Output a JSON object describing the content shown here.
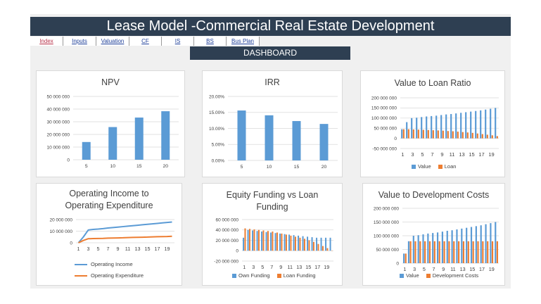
{
  "header": {
    "title": "Lease Model -Commercial Real Estate Development"
  },
  "nav": {
    "items": [
      "Index",
      "Inputs",
      "Valuation",
      "CF",
      "IS",
      "BS",
      "Bus Plan"
    ]
  },
  "dashboard_label": "DASHBOARD",
  "colors": {
    "blue": "#5b9bd5",
    "orange": "#ed7d31",
    "dark": "#2e3f52"
  },
  "chart_data": [
    {
      "id": "npv",
      "type": "bar",
      "title": "NPV",
      "categories": [
        "5",
        "10",
        "15",
        "20"
      ],
      "series": [
        {
          "values": [
            14000000,
            25800000,
            33300000,
            38300000
          ]
        }
      ],
      "ylim": [
        0,
        50000000
      ],
      "yticks": [
        "0",
        "10 000 000",
        "20 000 000",
        "30 000 000",
        "40 000 000",
        "50 000 000"
      ]
    },
    {
      "id": "irr",
      "type": "bar",
      "title": "IRR",
      "categories": [
        "5",
        "10",
        "15",
        "20"
      ],
      "series": [
        {
          "values": [
            15.6,
            14.1,
            12.3,
            11.4
          ]
        }
      ],
      "ylim": [
        0,
        20
      ],
      "yticks": [
        "0.00%",
        "5.00%",
        "10.00%",
        "15.00%",
        "20.00%"
      ]
    },
    {
      "id": "vtl",
      "type": "bar",
      "title": "Value to Loan Ratio",
      "categories": [
        "1",
        "2",
        "3",
        "4",
        "5",
        "6",
        "7",
        "8",
        "9",
        "10",
        "11",
        "12",
        "13",
        "14",
        "15",
        "16",
        "17",
        "18",
        "19",
        "20"
      ],
      "xticks": [
        "1",
        "3",
        "5",
        "7",
        "9",
        "11",
        "13",
        "15",
        "17",
        "19"
      ],
      "series": [
        {
          "name": "Value",
          "values": [
            45000000,
            80000000,
            100000000,
            102000000,
            105000000,
            108000000,
            110000000,
            112000000,
            115000000,
            118000000,
            120000000,
            123000000,
            126000000,
            129000000,
            132000000,
            135000000,
            138000000,
            142000000,
            146000000,
            150000000
          ]
        },
        {
          "name": "Loan",
          "values": [
            45000000,
            45000000,
            44000000,
            43000000,
            42000000,
            41000000,
            40000000,
            39000000,
            38000000,
            36000000,
            35000000,
            33000000,
            31000000,
            29000000,
            27000000,
            24000000,
            21000000,
            18000000,
            15000000,
            11000000
          ]
        }
      ],
      "ylim": [
        -50000000,
        200000000
      ],
      "yticks": [
        "-50 000 000",
        "0",
        "50 000 000",
        "100 000 000",
        "150 000 000",
        "200 000 000"
      ],
      "legend": [
        "Value",
        "Loan"
      ]
    },
    {
      "id": "oie",
      "type": "line",
      "title": "Operating Income to Operating Expenditure",
      "title_lines": [
        "Operating Income to",
        "Operating Expenditure"
      ],
      "categories": [
        "1",
        "2",
        "3",
        "4",
        "5",
        "6",
        "7",
        "8",
        "9",
        "10",
        "11",
        "12",
        "13",
        "14",
        "15",
        "16",
        "17",
        "18",
        "19",
        "20"
      ],
      "xticks": [
        "1",
        "3",
        "5",
        "7",
        "9",
        "11",
        "13",
        "15",
        "17",
        "19"
      ],
      "series": [
        {
          "name": "Operating Income",
          "values": [
            0,
            5000000,
            11000000,
            11500000,
            11800000,
            12200000,
            12700000,
            13100000,
            13500000,
            13900000,
            14300000,
            14700000,
            15100000,
            15500000,
            15900000,
            16300000,
            16700000,
            17100000,
            17500000,
            17900000
          ]
        },
        {
          "name": "Operating Expenditure",
          "values": [
            0,
            2000000,
            3500000,
            3600000,
            3700000,
            3800000,
            4000000,
            4100000,
            4200000,
            4300000,
            4500000,
            4600000,
            4700000,
            4800000,
            4900000,
            5100000,
            5200000,
            5300000,
            5400000,
            5600000
          ]
        }
      ],
      "ylim": [
        0,
        20000000
      ],
      "yticks": [
        "0",
        "10 000 000",
        "20 000 000"
      ],
      "legend": [
        "Operating Income",
        "Operating Expenditure"
      ]
    },
    {
      "id": "efl",
      "type": "bar",
      "title": "Equity Funding vs Loan Funding",
      "title_lines": [
        "Equity Funding vs Loan",
        "Funding"
      ],
      "categories": [
        "1",
        "2",
        "3",
        "4",
        "5",
        "6",
        "7",
        "8",
        "9",
        "10",
        "11",
        "12",
        "13",
        "14",
        "15",
        "16",
        "17",
        "18",
        "19",
        "20"
      ],
      "xticks": [
        "1",
        "3",
        "5",
        "7",
        "9",
        "11",
        "13",
        "15",
        "17",
        "19"
      ],
      "series": [
        {
          "name": "Own Funding",
          "values": [
            25000000,
            40000000,
            39000000,
            38000000,
            37000000,
            36000000,
            35000000,
            34000000,
            33000000,
            32000000,
            31000000,
            30000000,
            29000000,
            28000000,
            27000000,
            26000000,
            25000000,
            25000000,
            25000000,
            25000000
          ]
        },
        {
          "name": "Loan Funding",
          "values": [
            43000000,
            42000000,
            41000000,
            40000000,
            39000000,
            38000000,
            37000000,
            35000000,
            33000000,
            31000000,
            29000000,
            27000000,
            25000000,
            23000000,
            20000000,
            17000000,
            13000000,
            9000000,
            5000000,
            0
          ]
        }
      ],
      "ylim": [
        -20000000,
        60000000
      ],
      "yticks": [
        "-20 000 000",
        "0",
        "20 000 000",
        "40 000 000",
        "60 000 000"
      ],
      "legend": [
        "Own Funding",
        "Loan Funding"
      ]
    },
    {
      "id": "vdc",
      "type": "bar",
      "title": "Value to Development Costs",
      "categories": [
        "1",
        "2",
        "3",
        "4",
        "5",
        "6",
        "7",
        "8",
        "9",
        "10",
        "11",
        "12",
        "13",
        "14",
        "15",
        "16",
        "17",
        "18",
        "19",
        "20"
      ],
      "xticks": [
        "1",
        "3",
        "5",
        "7",
        "9",
        "11",
        "13",
        "15",
        "17",
        "19"
      ],
      "series": [
        {
          "name": "Value",
          "values": [
            35000000,
            80000000,
            100000000,
            102000000,
            105000000,
            108000000,
            110000000,
            112000000,
            115000000,
            118000000,
            120000000,
            123000000,
            126000000,
            129000000,
            132000000,
            135000000,
            138000000,
            142000000,
            146000000,
            150000000
          ]
        },
        {
          "name": "Development Costs",
          "values": [
            35000000,
            80000000,
            80000000,
            80000000,
            80000000,
            80000000,
            80000000,
            80000000,
            80000000,
            80000000,
            80000000,
            80000000,
            80000000,
            80000000,
            80000000,
            80000000,
            80000000,
            80000000,
            80000000,
            80000000
          ]
        }
      ],
      "ylim": [
        0,
        200000000
      ],
      "yticks": [
        "0",
        "50 000 000",
        "100 000 000",
        "150 000 000",
        "200 000 000"
      ],
      "legend": [
        "Value",
        "Development Costs"
      ]
    }
  ]
}
